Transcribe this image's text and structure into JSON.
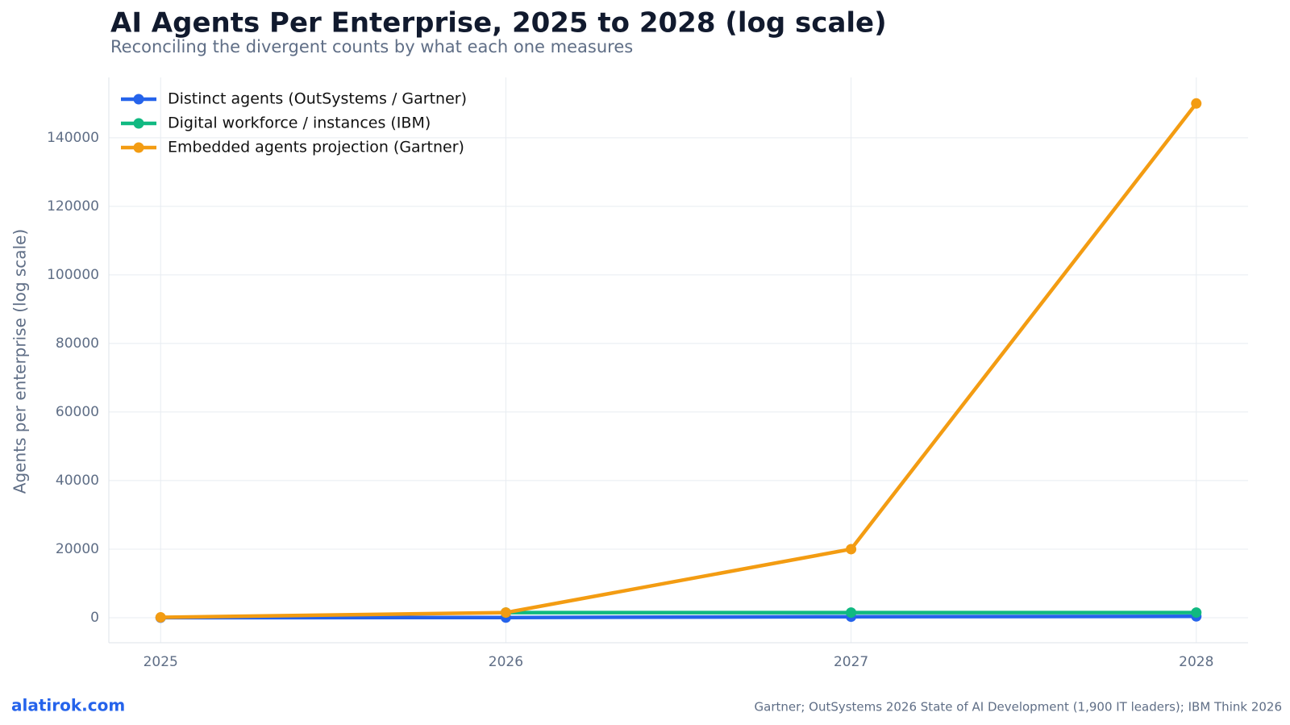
{
  "chart_data": {
    "type": "line",
    "title": "AI Agents Per Enterprise, 2025 to 2028 (log scale)",
    "subtitle": "Reconciling the divergent counts by what each one measures",
    "y_label": "Agents per enterprise (log scale)",
    "x": [
      2025,
      2026,
      2027,
      2028
    ],
    "series": [
      {
        "name": "Distinct agents (OutSystems / Gartner)",
        "color": "#2563eb",
        "values": [
          10,
          50,
          300,
          400
        ]
      },
      {
        "name": "Digital workforce / instances (IBM)",
        "color": "#10b981",
        "values": [
          null,
          1500,
          1500,
          1500
        ]
      },
      {
        "name": "Embedded agents projection (Gartner)",
        "color": "#f39c12",
        "values": [
          100,
          1500,
          20000,
          150000
        ]
      }
    ],
    "xlim": [
      2024.85,
      2028.15
    ],
    "xticks": [
      2025,
      2026,
      2027,
      2028
    ],
    "ylim": [
      -7300,
      157600
    ],
    "yticks": [
      0,
      20000,
      40000,
      60000,
      80000,
      100000,
      120000,
      140000
    ],
    "grid": true,
    "legend": "upper-left",
    "brand": "alatirok.com",
    "source": "Gartner; OutSystems 2026 State of AI Development (1,900 IT leaders); IBM Think 2026"
  }
}
